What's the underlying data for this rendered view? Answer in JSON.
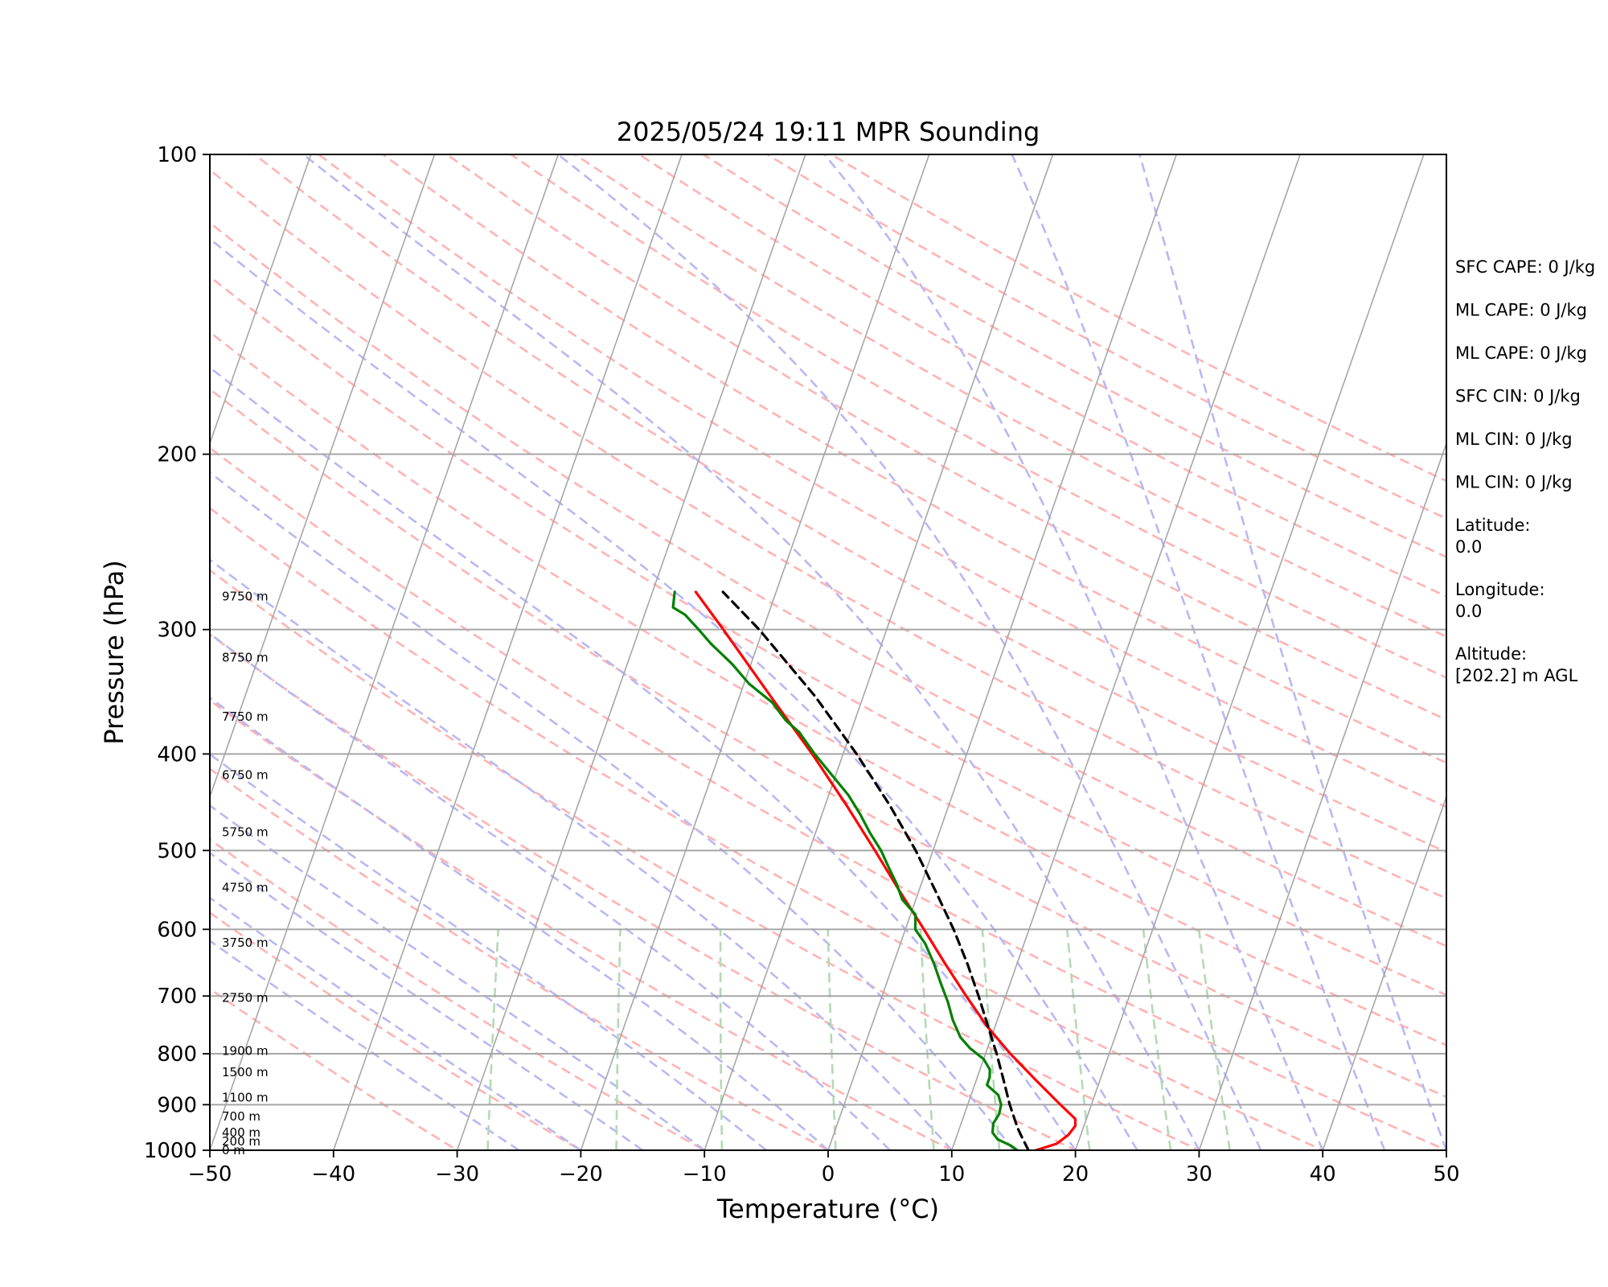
{
  "chart_data": {
    "type": "skew-t",
    "title": "2025/05/24 19:11 MPR Sounding",
    "xlabel": "Temperature (°C)",
    "ylabel": "Pressure (hPa)",
    "xlim": [
      -50,
      50
    ],
    "ylim": [
      1000,
      100
    ],
    "y_scale": "log",
    "grid": true,
    "x_ticks": [
      "−50",
      "−40",
      "−30",
      "−20",
      "−10",
      "0",
      "10",
      "20",
      "30",
      "40",
      "50"
    ],
    "y_ticks": [
      "100",
      "200",
      "300",
      "400",
      "500",
      "600",
      "700",
      "800",
      "900",
      "1000"
    ],
    "altitude_labels": [
      {
        "p": 278,
        "label": "9750 m"
      },
      {
        "p": 320,
        "label": "8750 m"
      },
      {
        "p": 367,
        "label": "7750 m"
      },
      {
        "p": 420,
        "label": "6750 m"
      },
      {
        "p": 479,
        "label": "5750 m"
      },
      {
        "p": 545,
        "label": "4750 m"
      },
      {
        "p": 619,
        "label": "3750 m"
      },
      {
        "p": 703,
        "label": "2750 m"
      },
      {
        "p": 795,
        "label": "1900 m"
      },
      {
        "p": 835,
        "label": "1500 m"
      },
      {
        "p": 885,
        "label": "1100 m"
      },
      {
        "p": 925,
        "label": "700 m"
      },
      {
        "p": 960,
        "label": "400 m"
      },
      {
        "p": 980,
        "label": "200 m"
      },
      {
        "p": 1000,
        "label": "0 m"
      }
    ],
    "series": [
      {
        "role": "temperature",
        "color": "#ff0000",
        "points": [
          [
            1000,
            16.8
          ],
          [
            985,
            18.3
          ],
          [
            965,
            19.0
          ],
          [
            945,
            19.3
          ],
          [
            930,
            19.1
          ],
          [
            900,
            17.5
          ],
          [
            850,
            14.8
          ],
          [
            800,
            12.0
          ],
          [
            750,
            9.3
          ],
          [
            700,
            6.8
          ],
          [
            650,
            4.2
          ],
          [
            600,
            1.5
          ],
          [
            550,
            -1.5
          ],
          [
            500,
            -4.7
          ],
          [
            450,
            -8.3
          ],
          [
            400,
            -12.5
          ],
          [
            350,
            -17.5
          ],
          [
            300,
            -23.2
          ],
          [
            275,
            -26.5
          ]
        ]
      },
      {
        "role": "dewpoint",
        "color": "#008000",
        "points": [
          [
            1000,
            15.3
          ],
          [
            990,
            14.7
          ],
          [
            975,
            13.4
          ],
          [
            960,
            12.8
          ],
          [
            940,
            12.6
          ],
          [
            920,
            12.8
          ],
          [
            900,
            12.7
          ],
          [
            880,
            12.2
          ],
          [
            860,
            11.0
          ],
          [
            845,
            11.0
          ],
          [
            830,
            10.8
          ],
          [
            810,
            10.0
          ],
          [
            790,
            8.6
          ],
          [
            770,
            7.5
          ],
          [
            740,
            6.4
          ],
          [
            710,
            5.5
          ],
          [
            680,
            4.4
          ],
          [
            650,
            3.3
          ],
          [
            620,
            2.0
          ],
          [
            600,
            0.8
          ],
          [
            580,
            0.4
          ],
          [
            560,
            -1.1
          ],
          [
            540,
            -2.0
          ],
          [
            520,
            -3.1
          ],
          [
            500,
            -4.2
          ],
          [
            480,
            -5.6
          ],
          [
            460,
            -6.9
          ],
          [
            440,
            -8.4
          ],
          [
            420,
            -10.3
          ],
          [
            400,
            -12.3
          ],
          [
            380,
            -14.2
          ],
          [
            370,
            -15.6
          ],
          [
            355,
            -17.2
          ],
          [
            340,
            -19.6
          ],
          [
            325,
            -21.5
          ],
          [
            310,
            -23.8
          ],
          [
            300,
            -25.2
          ],
          [
            290,
            -26.7
          ],
          [
            285,
            -27.9
          ],
          [
            275,
            -28.2
          ]
        ]
      },
      {
        "role": "parcel",
        "color": "#000000",
        "dashed": true,
        "points": [
          [
            1000,
            16.2
          ],
          [
            970,
            15.3
          ],
          [
            950,
            14.7
          ],
          [
            900,
            13.4
          ],
          [
            850,
            12.2
          ],
          [
            800,
            10.9
          ],
          [
            750,
            9.4
          ],
          [
            700,
            7.8
          ],
          [
            650,
            6.0
          ],
          [
            600,
            3.9
          ],
          [
            550,
            1.4
          ],
          [
            500,
            -1.4
          ],
          [
            450,
            -4.8
          ],
          [
            400,
            -8.9
          ],
          [
            350,
            -13.9
          ],
          [
            300,
            -20.3
          ],
          [
            275,
            -24.3
          ]
        ]
      }
    ],
    "stats": [
      {
        "label": "SFC CAPE: 0 J/kg"
      },
      {
        "label": "ML CAPE: 0 J/kg"
      },
      {
        "label": "ML CAPE: 0 J/kg"
      },
      {
        "label": "SFC CIN: 0 J/kg"
      },
      {
        "label": "ML CIN: 0 J/kg"
      },
      {
        "label": "ML CIN: 0 J/kg"
      },
      {
        "label": "Latitude:",
        "value": "0.0"
      },
      {
        "label": "Longitude:",
        "value": "0.0"
      },
      {
        "label": "Altitude:",
        "value": "[202.2] m AGL"
      }
    ],
    "colors": {
      "isotherm": "#a6a6a6",
      "isobar": "#a6a6a6",
      "dry_adiabat": "#ffb3b3",
      "moist_adiabat": "#b8b8f5",
      "mixing_ratio": "#b3dab3"
    }
  }
}
